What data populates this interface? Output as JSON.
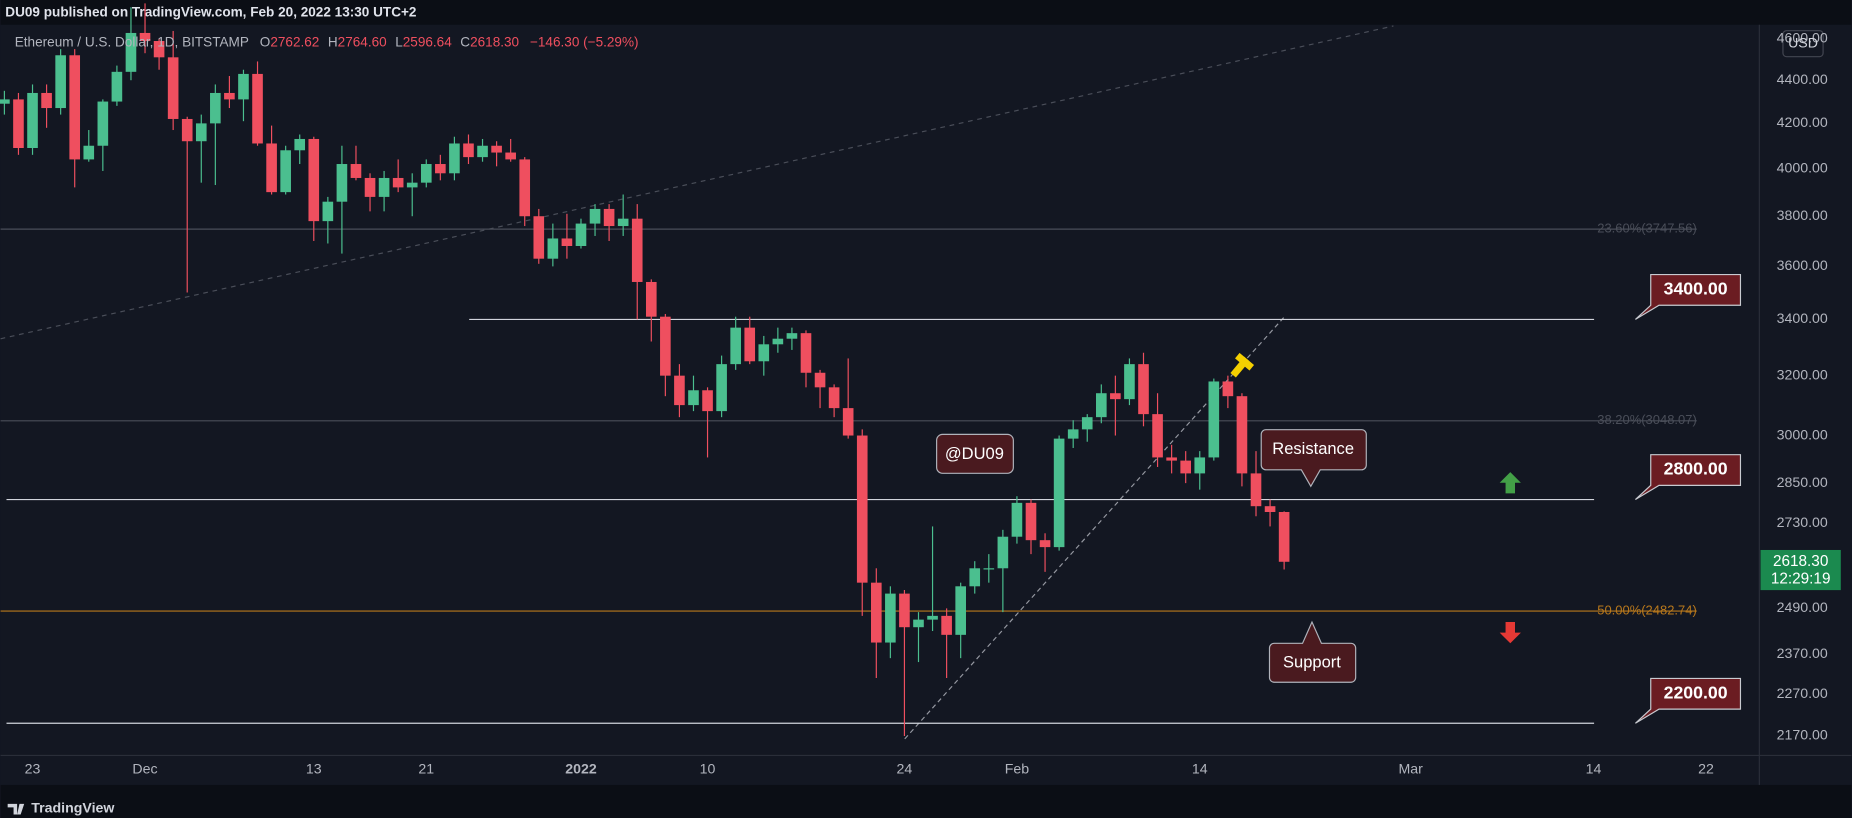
{
  "header": "DU09 published on TradingView.com, Feb 20, 2022 13:30 UTC+2",
  "footer": "TradingView",
  "chart_data": {
    "type": "candlestick",
    "legend": {
      "symbol": "Ethereum / U.S. Dollar, 1D, BITSTAMP",
      "items": [
        {
          "key": "O",
          "text": "2762.62"
        },
        {
          "key": "H",
          "text": "2764.60"
        },
        {
          "key": "L",
          "text": "2596.64"
        },
        {
          "key": "C",
          "text": "2618.30"
        }
      ],
      "change": "−146.30 (−5.29%)"
    },
    "currency": "USD",
    "up_color": "#4bbf8f",
    "down_color": "#ef4f5f",
    "log_scale": true,
    "grid": false,
    "xlim": [
      "2021-11-20T17:30:00Z",
      "2022-03-25T19:00:00Z"
    ],
    "ylim": [
      2125,
      4665
    ],
    "xticks": [
      {
        "value": "2021-11-23",
        "label": "23"
      },
      {
        "value": "2021-12-01",
        "label": "Dec"
      },
      {
        "value": "2021-12-13",
        "label": "13"
      },
      {
        "value": "2021-12-21",
        "label": "21"
      },
      {
        "value": "2022-01-01",
        "label": "2022"
      },
      {
        "value": "2022-01-10",
        "label": "10"
      },
      {
        "value": "2022-01-24",
        "label": "24"
      },
      {
        "value": "2022-02-01",
        "label": "Feb"
      },
      {
        "value": "2022-02-14",
        "label": "14"
      },
      {
        "value": "2022-03-01",
        "label": "Mar"
      },
      {
        "value": "2022-03-14",
        "label": "14"
      },
      {
        "value": "2022-03-22",
        "label": "22"
      }
    ],
    "yticks": [
      {
        "value": 4600,
        "label": "4600.00"
      },
      {
        "value": 4400,
        "label": "4400.00"
      },
      {
        "value": 4200,
        "label": "4200.00"
      },
      {
        "value": 4000,
        "label": "4000.00"
      },
      {
        "value": 3800,
        "label": "3800.00"
      },
      {
        "value": 3600,
        "label": "3600.00"
      },
      {
        "value": 3400,
        "label": "3400.00"
      },
      {
        "value": 3200,
        "label": "3200.00"
      },
      {
        "value": 3000,
        "label": "3000.00"
      },
      {
        "value": 2850,
        "label": "2850.00"
      },
      {
        "value": 2730,
        "label": "2730.00"
      },
      {
        "value": 2490,
        "label": "2490.00"
      },
      {
        "value": 2370,
        "label": "2370.00"
      },
      {
        "value": 2270,
        "label": "2270.00"
      },
      {
        "value": 2170,
        "label": "2170.00"
      }
    ],
    "x": [
      "2021-11-21",
      "2021-11-22",
      "2021-11-23",
      "2021-11-24",
      "2021-11-25",
      "2021-11-26",
      "2021-11-27",
      "2021-11-28",
      "2021-11-29",
      "2021-11-30",
      "2021-12-01",
      "2021-12-02",
      "2021-12-03",
      "2021-12-04",
      "2021-12-05",
      "2021-12-06",
      "2021-12-07",
      "2021-12-08",
      "2021-12-09",
      "2021-12-10",
      "2021-12-11",
      "2021-12-12",
      "2021-12-13",
      "2021-12-14",
      "2021-12-15",
      "2021-12-16",
      "2021-12-17",
      "2021-12-18",
      "2021-12-19",
      "2021-12-20",
      "2021-12-21",
      "2021-12-22",
      "2021-12-23",
      "2021-12-24",
      "2021-12-25",
      "2021-12-26",
      "2021-12-27",
      "2021-12-28",
      "2021-12-29",
      "2021-12-30",
      "2021-12-31",
      "2022-01-01",
      "2022-01-02",
      "2022-01-03",
      "2022-01-04",
      "2022-01-05",
      "2022-01-06",
      "2022-01-07",
      "2022-01-08",
      "2022-01-09",
      "2022-01-10",
      "2022-01-11",
      "2022-01-12",
      "2022-01-13",
      "2022-01-14",
      "2022-01-15",
      "2022-01-16",
      "2022-01-17",
      "2022-01-18",
      "2022-01-19",
      "2022-01-20",
      "2022-01-21",
      "2022-01-22",
      "2022-01-23",
      "2022-01-24",
      "2022-01-25",
      "2022-01-26",
      "2022-01-27",
      "2022-01-28",
      "2022-01-29",
      "2022-01-30",
      "2022-01-31",
      "2022-02-01",
      "2022-02-02",
      "2022-02-03",
      "2022-02-04",
      "2022-02-05",
      "2022-02-06",
      "2022-02-07",
      "2022-02-08",
      "2022-02-09",
      "2022-02-10",
      "2022-02-11",
      "2022-02-12",
      "2022-02-13",
      "2022-02-14",
      "2022-02-15",
      "2022-02-16",
      "2022-02-17",
      "2022-02-18",
      "2022-02-19",
      "2022-02-20"
    ],
    "open": [
      4290,
      4310,
      4090,
      4340,
      4270,
      4520,
      4040,
      4100,
      4300,
      4440,
      4630,
      4590,
      4510,
      4220,
      4120,
      4200,
      4340,
      4310,
      4430,
      4110,
      3900,
      4080,
      4130,
      3780,
      3860,
      4020,
      3960,
      3880,
      3960,
      3920,
      3940,
      4020,
      3980,
      4110,
      4050,
      4100,
      4070,
      4040,
      3800,
      3630,
      3710,
      3680,
      3770,
      3830,
      3760,
      3790,
      3540,
      3410,
      3200,
      3100,
      3150,
      3080,
      3240,
      3370,
      3250,
      3310,
      3330,
      3350,
      3210,
      3160,
      3090,
      3000,
      2560,
      2400,
      2530,
      2440,
      2460,
      2470,
      2420,
      2550,
      2600,
      2600,
      2690,
      2790,
      2680,
      2660,
      2990,
      3020,
      3060,
      3140,
      3120,
      3240,
      3070,
      2930,
      2920,
      2880,
      2930,
      3180,
      3130,
      2880,
      2780,
      2762.62
    ],
    "high": [
      4350,
      4340,
      4380,
      4380,
      4550,
      4550,
      4170,
      4310,
      4470,
      4760,
      4780,
      4600,
      4640,
      4230,
      4240,
      4380,
      4420,
      4450,
      4490,
      4190,
      4100,
      4150,
      4140,
      3880,
      4100,
      4100,
      3980,
      3990,
      4040,
      3980,
      4040,
      4060,
      4140,
      4150,
      4130,
      4120,
      4130,
      4050,
      3830,
      3770,
      3810,
      3790,
      3850,
      3850,
      3890,
      3850,
      3550,
      3420,
      3240,
      3200,
      3160,
      3270,
      3410,
      3410,
      3340,
      3370,
      3370,
      3360,
      3220,
      3170,
      3260,
      3020,
      2600,
      2550,
      2540,
      2480,
      2720,
      2490,
      2560,
      2620,
      2640,
      2710,
      2810,
      2800,
      2700,
      3000,
      3050,
      3070,
      3170,
      3200,
      3260,
      3280,
      3140,
      2970,
      2950,
      2950,
      3190,
      3200,
      3140,
      2950,
      2800,
      2764.6
    ],
    "low": [
      4240,
      4060,
      4060,
      4180,
      4240,
      3920,
      4030,
      3990,
      4280,
      4400,
      4530,
      4450,
      4170,
      3500,
      3940,
      3930,
      4270,
      4210,
      4100,
      3890,
      3890,
      4020,
      3700,
      3690,
      3650,
      3950,
      3820,
      3820,
      3900,
      3800,
      3920,
      3950,
      3950,
      4020,
      4030,
      4010,
      4030,
      3760,
      3610,
      3600,
      3630,
      3670,
      3720,
      3700,
      3720,
      3400,
      3320,
      3130,
      3060,
      3080,
      2930,
      3060,
      3220,
      3240,
      3200,
      3280,
      3290,
      3160,
      3090,
      3060,
      2990,
      2470,
      2310,
      2360,
      2170,
      2350,
      2430,
      2310,
      2360,
      2530,
      2560,
      2480,
      2670,
      2640,
      2590,
      2650,
      2960,
      2980,
      3040,
      3000,
      3100,
      3030,
      2900,
      2880,
      2850,
      2830,
      2920,
      3090,
      2840,
      2750,
      2720,
      2596.64
    ],
    "close": [
      4310,
      4090,
      4340,
      4270,
      4520,
      4040,
      4100,
      4300,
      4440,
      4630,
      4590,
      4510,
      4220,
      4120,
      4200,
      4340,
      4310,
      4430,
      4110,
      3900,
      4080,
      4130,
      3780,
      3860,
      4020,
      3960,
      3880,
      3960,
      3920,
      3940,
      4020,
      3980,
      4110,
      4050,
      4100,
      4070,
      4040,
      3800,
      3630,
      3710,
      3680,
      3770,
      3830,
      3760,
      3790,
      3540,
      3410,
      3200,
      3100,
      3150,
      3080,
      3240,
      3370,
      3250,
      3310,
      3330,
      3350,
      3210,
      3160,
      3090,
      3000,
      2560,
      2400,
      2530,
      2440,
      2460,
      2470,
      2420,
      2550,
      2600,
      2600,
      2690,
      2790,
      2680,
      2660,
      2990,
      3020,
      3060,
      3140,
      3120,
      3240,
      3070,
      2930,
      2920,
      2880,
      2930,
      3180,
      3130,
      2880,
      2780,
      2762.62,
      2618.3
    ],
    "levels": [
      {
        "value": 3400,
        "label": "3400.00"
      },
      {
        "value": 2800,
        "label": "2800.00"
      },
      {
        "value": 2200,
        "label": "2200.00"
      }
    ],
    "fib_levels": [
      {
        "value": 3747.56,
        "label": "23.60%(3747.56)",
        "color": "#4a4e59"
      },
      {
        "value": 3048.07,
        "label": "38.20%(3048.07)",
        "color": "#4a4e59"
      },
      {
        "value": 2482.74,
        "label": "50.00%(2482.74)",
        "color": "#b8781c"
      }
    ],
    "last_price": {
      "value": 2618.3,
      "label": "2618.30",
      "countdown": "12:29:19"
    },
    "annotations": {
      "handle": "@DU09",
      "resistance": "Resistance",
      "support": "Support"
    }
  }
}
